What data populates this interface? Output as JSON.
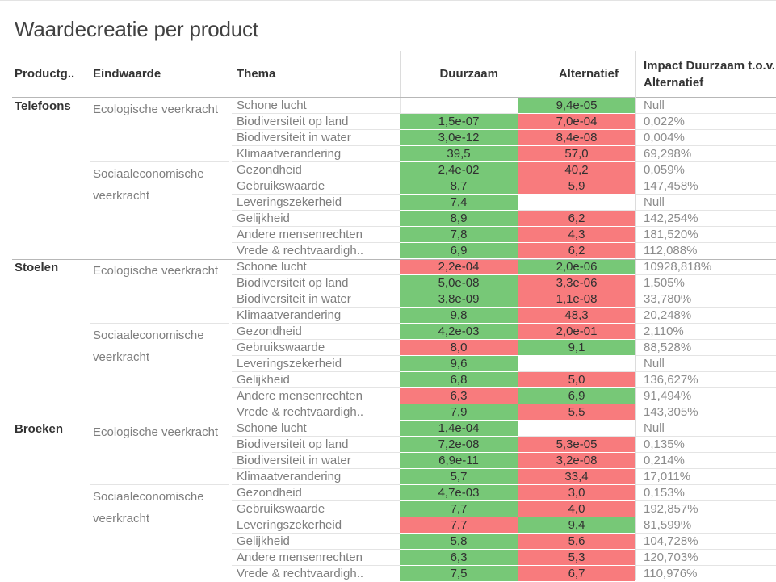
{
  "title": "Waardecreatie per product",
  "colors": {
    "cell_positive": "#77c877",
    "cell_negative": "#f87b7d"
  },
  "header": {
    "productgroep": "Productg..",
    "eindwaarde": "Eindwaarde",
    "thema": "Thema",
    "duurzaam": "Duurzaam",
    "alternatief": "Alternatief",
    "impact": "Impact Duurzaam t.o.v. Alternatief"
  },
  "chart_data": {
    "type": "table",
    "columns": [
      "Productgroep",
      "Eindwaarde",
      "Thema",
      "Duurzaam",
      "Alternatief",
      "Impact Duurzaam t.o.v. Alternatief"
    ],
    "legend": {
      "green_means": "cell colored green",
      "red_means": "cell colored red"
    },
    "sections": [
      {
        "product": "Telefoons",
        "groups": [
          {
            "label": "Ecologische veerkracht",
            "span": 4
          },
          {
            "label": "Sociaaleconomische veerkracht",
            "span": 6
          }
        ],
        "rows": [
          {
            "thema": "Schone lucht",
            "duurzaam": "",
            "duurzaam_color": "none",
            "alternatief": "9,4e-05",
            "alternatief_color": "green",
            "impact": "Null"
          },
          {
            "thema": "Biodiversiteit op land",
            "duurzaam": "1,5e-07",
            "duurzaam_color": "green",
            "alternatief": "7,0e-04",
            "alternatief_color": "red",
            "impact": "0,022%"
          },
          {
            "thema": "Biodiversiteit in water",
            "duurzaam": "3,0e-12",
            "duurzaam_color": "green",
            "alternatief": "8,4e-08",
            "alternatief_color": "red",
            "impact": "0,004%"
          },
          {
            "thema": "Klimaatverandering",
            "duurzaam": "39,5",
            "duurzaam_color": "green",
            "alternatief": "57,0",
            "alternatief_color": "red",
            "impact": "69,298%"
          },
          {
            "thema": "Gezondheid",
            "duurzaam": "2,4e-02",
            "duurzaam_color": "green",
            "alternatief": "40,2",
            "alternatief_color": "red",
            "impact": "0,059%"
          },
          {
            "thema": "Gebruikswaarde",
            "duurzaam": "8,7",
            "duurzaam_color": "green",
            "alternatief": "5,9",
            "alternatief_color": "red",
            "impact": "147,458%"
          },
          {
            "thema": "Leveringszekerheid",
            "duurzaam": "7,4",
            "duurzaam_color": "green",
            "alternatief": "",
            "alternatief_color": "none",
            "impact": "Null"
          },
          {
            "thema": "Gelijkheid",
            "duurzaam": "8,9",
            "duurzaam_color": "green",
            "alternatief": "6,2",
            "alternatief_color": "red",
            "impact": "142,254%"
          },
          {
            "thema": "Andere mensenrechten",
            "duurzaam": "7,8",
            "duurzaam_color": "green",
            "alternatief": "4,3",
            "alternatief_color": "red",
            "impact": "181,520%"
          },
          {
            "thema": "Vrede & rechtvaardigh..",
            "duurzaam": "6,9",
            "duurzaam_color": "green",
            "alternatief": "6,2",
            "alternatief_color": "red",
            "impact": "112,088%"
          }
        ]
      },
      {
        "product": "Stoelen",
        "groups": [
          {
            "label": "Ecologische veerkracht",
            "span": 4
          },
          {
            "label": "Sociaaleconomische veerkracht",
            "span": 6
          }
        ],
        "rows": [
          {
            "thema": "Schone lucht",
            "duurzaam": "2,2e-04",
            "duurzaam_color": "red",
            "alternatief": "2,0e-06",
            "alternatief_color": "green",
            "impact": "10928,818%"
          },
          {
            "thema": "Biodiversiteit op land",
            "duurzaam": "5,0e-08",
            "duurzaam_color": "green",
            "alternatief": "3,3e-06",
            "alternatief_color": "red",
            "impact": "1,505%"
          },
          {
            "thema": "Biodiversiteit in water",
            "duurzaam": "3,8e-09",
            "duurzaam_color": "green",
            "alternatief": "1,1e-08",
            "alternatief_color": "red",
            "impact": "33,780%"
          },
          {
            "thema": "Klimaatverandering",
            "duurzaam": "9,8",
            "duurzaam_color": "green",
            "alternatief": "48,3",
            "alternatief_color": "red",
            "impact": "20,248%"
          },
          {
            "thema": "Gezondheid",
            "duurzaam": "4,2e-03",
            "duurzaam_color": "green",
            "alternatief": "2,0e-01",
            "alternatief_color": "red",
            "impact": "2,110%"
          },
          {
            "thema": "Gebruikswaarde",
            "duurzaam": "8,0",
            "duurzaam_color": "red",
            "alternatief": "9,1",
            "alternatief_color": "green",
            "impact": "88,528%"
          },
          {
            "thema": "Leveringszekerheid",
            "duurzaam": "9,6",
            "duurzaam_color": "green",
            "alternatief": "",
            "alternatief_color": "none",
            "impact": "Null"
          },
          {
            "thema": "Gelijkheid",
            "duurzaam": "6,8",
            "duurzaam_color": "green",
            "alternatief": "5,0",
            "alternatief_color": "red",
            "impact": "136,627%"
          },
          {
            "thema": "Andere mensenrechten",
            "duurzaam": "6,3",
            "duurzaam_color": "red",
            "alternatief": "6,9",
            "alternatief_color": "green",
            "impact": "91,494%"
          },
          {
            "thema": "Vrede & rechtvaardigh..",
            "duurzaam": "7,9",
            "duurzaam_color": "green",
            "alternatief": "5,5",
            "alternatief_color": "red",
            "impact": "143,305%"
          }
        ]
      },
      {
        "product": "Broeken",
        "groups": [
          {
            "label": "Ecologische veerkracht",
            "span": 4
          },
          {
            "label": "Sociaaleconomische veerkracht",
            "span": 6
          }
        ],
        "rows": [
          {
            "thema": "Schone lucht",
            "duurzaam": "1,4e-04",
            "duurzaam_color": "green",
            "alternatief": "",
            "alternatief_color": "none",
            "impact": "Null"
          },
          {
            "thema": "Biodiversiteit op land",
            "duurzaam": "7,2e-08",
            "duurzaam_color": "green",
            "alternatief": "5,3e-05",
            "alternatief_color": "red",
            "impact": "0,135%"
          },
          {
            "thema": "Biodiversiteit in water",
            "duurzaam": "6,9e-11",
            "duurzaam_color": "green",
            "alternatief": "3,2e-08",
            "alternatief_color": "red",
            "impact": "0,214%"
          },
          {
            "thema": "Klimaatverandering",
            "duurzaam": "5,7",
            "duurzaam_color": "green",
            "alternatief": "33,4",
            "alternatief_color": "red",
            "impact": "17,011%"
          },
          {
            "thema": "Gezondheid",
            "duurzaam": "4,7e-03",
            "duurzaam_color": "green",
            "alternatief": "3,0",
            "alternatief_color": "red",
            "impact": "0,153%"
          },
          {
            "thema": "Gebruikswaarde",
            "duurzaam": "7,7",
            "duurzaam_color": "green",
            "alternatief": "4,0",
            "alternatief_color": "red",
            "impact": "192,857%"
          },
          {
            "thema": "Leveringszekerheid",
            "duurzaam": "7,7",
            "duurzaam_color": "red",
            "alternatief": "9,4",
            "alternatief_color": "green",
            "impact": "81,599%"
          },
          {
            "thema": "Gelijkheid",
            "duurzaam": "5,8",
            "duurzaam_color": "green",
            "alternatief": "5,6",
            "alternatief_color": "red",
            "impact": "104,728%"
          },
          {
            "thema": "Andere mensenrechten",
            "duurzaam": "6,3",
            "duurzaam_color": "green",
            "alternatief": "5,3",
            "alternatief_color": "red",
            "impact": "120,703%"
          },
          {
            "thema": "Vrede & rechtvaardigh..",
            "duurzaam": "7,5",
            "duurzaam_color": "green",
            "alternatief": "6,7",
            "alternatief_color": "red",
            "impact": "110,976%"
          }
        ]
      }
    ]
  }
}
